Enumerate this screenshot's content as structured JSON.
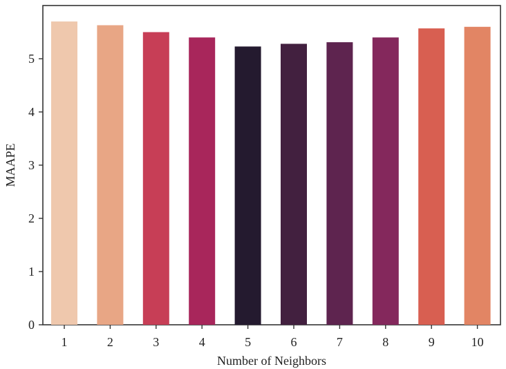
{
  "chart_data": {
    "type": "bar",
    "title": "",
    "xlabel": "Number of Neighbors",
    "ylabel": "MAAPE",
    "categories": [
      "1",
      "2",
      "3",
      "4",
      "5",
      "6",
      "7",
      "8",
      "9",
      "10"
    ],
    "values": [
      5.7,
      5.63,
      5.5,
      5.4,
      5.23,
      5.28,
      5.31,
      5.4,
      5.57,
      5.6
    ],
    "colors": [
      "#efc8ad",
      "#e8a685",
      "#c73e56",
      "#a8265b",
      "#241a2f",
      "#42203f",
      "#5e244f",
      "#84285c",
      "#d85f51",
      "#e28564"
    ],
    "ylim": [
      0,
      6.0
    ],
    "yticks": [
      0,
      1,
      2,
      3,
      4,
      5
    ],
    "grid": false,
    "legend": "none"
  }
}
